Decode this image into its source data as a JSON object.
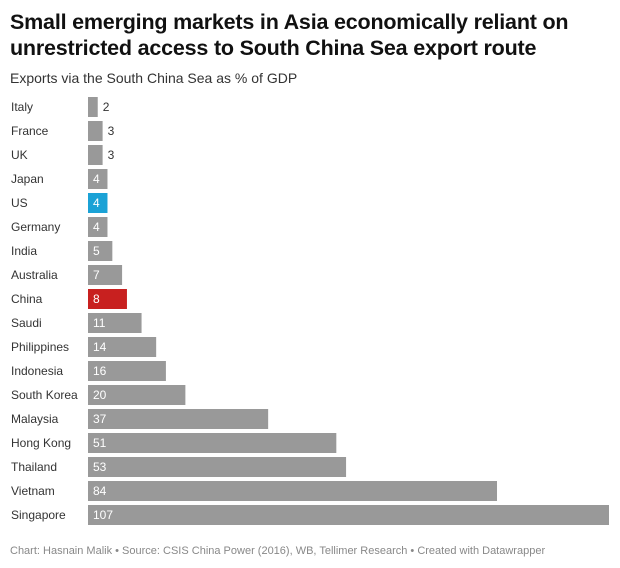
{
  "header": {
    "title": "Small emerging markets in Asia economically reliant on unrestricted access to South China Sea export route",
    "subtitle": "Exports via the South China Sea as % of GDP"
  },
  "footer": {
    "credit": "Chart: Hasnain Malik • Source: CSIS China Power (2016), WB, Tellimer Research • Created with Datawrapper"
  },
  "colors": {
    "default_bar": "#999999",
    "highlight_us": "#1ba2d6",
    "highlight_china": "#c8201f",
    "label_inside": "#ffffff",
    "label_outside": "#333333"
  },
  "chart_data": {
    "type": "bar",
    "orientation": "horizontal",
    "title": "Small emerging markets in Asia economically reliant on unrestricted access to South China Sea export route",
    "subtitle": "Exports via the South China Sea as % of GDP",
    "xlabel": "",
    "ylabel": "",
    "xlim": [
      0,
      107
    ],
    "grid": false,
    "categories": [
      "Italy",
      "France",
      "UK",
      "Japan",
      "US",
      "Germany",
      "India",
      "Australia",
      "China",
      "Saudi",
      "Philippines",
      "Indonesia",
      "South Korea",
      "Malaysia",
      "Hong Kong",
      "Thailand",
      "Vietnam",
      "Singapore"
    ],
    "values": [
      2,
      3,
      3,
      4,
      4,
      4,
      5,
      7,
      8,
      11,
      14,
      16,
      20,
      37,
      51,
      53,
      84,
      107
    ],
    "highlights": {
      "US": "#1ba2d6",
      "China": "#c8201f"
    }
  }
}
